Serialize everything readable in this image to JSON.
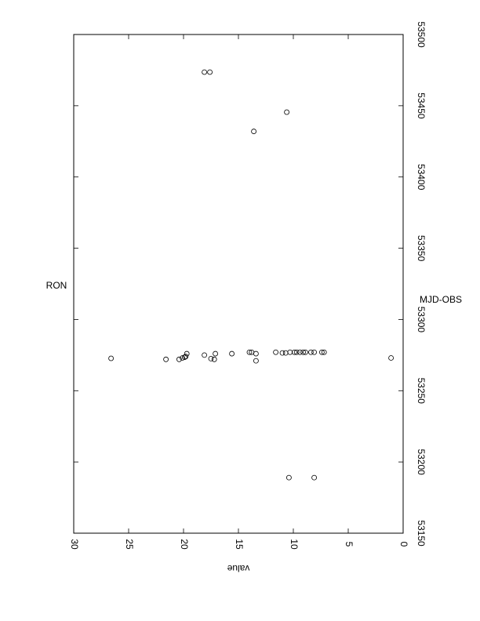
{
  "chart_data": {
    "type": "scatter",
    "title": "RON",
    "x_label": "MJD-OBS",
    "y_label": "value",
    "color": "#000000",
    "xlim": [
      53150,
      53500
    ],
    "xticks": [
      53150,
      53200,
      53250,
      53300,
      53350,
      53400,
      53450,
      53500
    ],
    "ylim": [
      0,
      30
    ],
    "yticks": [
      0,
      5,
      10,
      15,
      20,
      25,
      30
    ],
    "x": [
      53272.7,
      53272,
      53272,
      53273,
      53273.5,
      53274,
      53276,
      53275,
      53272.5,
      53272,
      53276,
      53276,
      53277,
      53277,
      53276,
      53271,
      53277,
      53276.5,
      53276.5,
      53277,
      53277,
      53277,
      53277,
      53277,
      53277,
      53277,
      53277,
      53277,
      53277,
      53273,
      53189,
      53189,
      53432,
      53445.5,
      53473.6,
      53473.6
    ],
    "values": [
      26.6,
      21.6,
      20.4,
      20.1,
      19.9,
      19.8,
      19.7,
      18.1,
      17.5,
      17.2,
      17.1,
      15.6,
      14.0,
      13.8,
      13.4,
      13.4,
      11.6,
      11.0,
      10.7,
      10.3,
      9.9,
      9.7,
      9.4,
      9.1,
      8.9,
      8.4,
      8.1,
      7.4,
      7.2,
      1.1,
      10.4,
      8.1,
      13.6,
      10.6,
      18.1,
      17.6
    ]
  }
}
